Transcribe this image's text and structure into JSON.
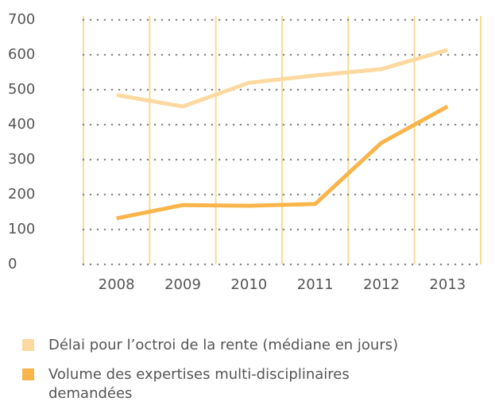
{
  "chart_data": {
    "type": "line",
    "categories": [
      "2008",
      "2009",
      "2010",
      "2011",
      "2012",
      "2013"
    ],
    "series": [
      {
        "name": "Délai pour l’octroi de la rente (médiane en jours)",
        "color": "#fcd9a0",
        "values": [
          485,
          452,
          520,
          541,
          559,
          614
        ]
      },
      {
        "name": "Volume des expertises multi-disciplinaires demandées",
        "color": "#f9b54a",
        "values": [
          132,
          170,
          168,
          173,
          348,
          452
        ]
      }
    ],
    "ylim": [
      0,
      700
    ],
    "yticks": [
      0,
      100,
      200,
      300,
      400,
      500,
      600,
      700
    ],
    "grid": true
  }
}
